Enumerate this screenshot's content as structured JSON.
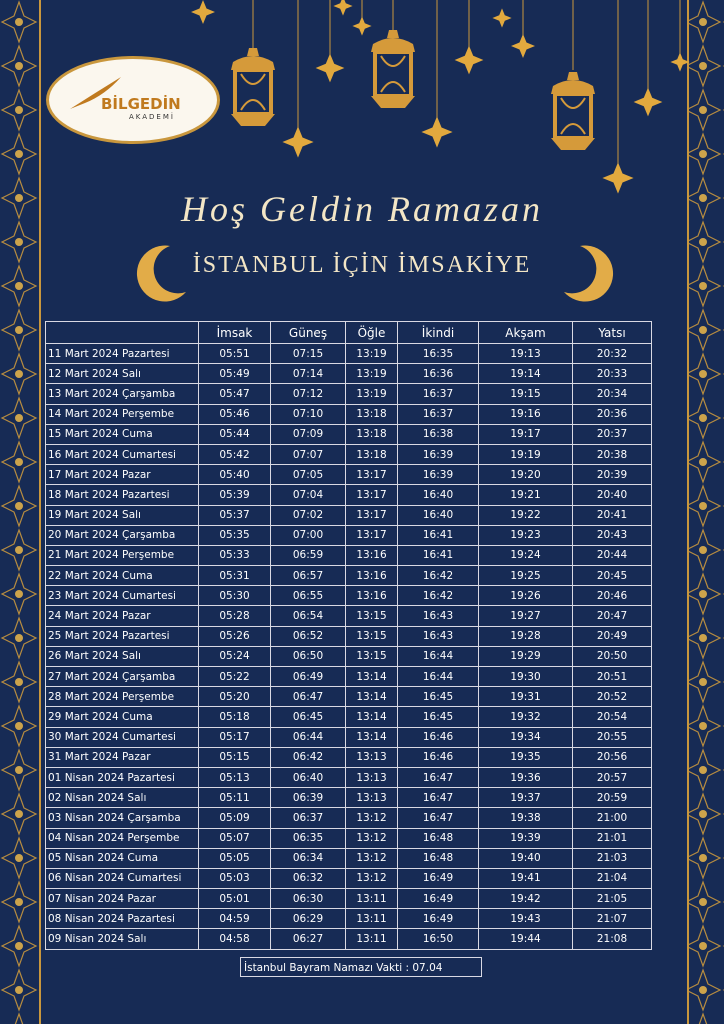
{
  "logo": {
    "name": "BİLGEDİN",
    "sub": "AKADEMİ"
  },
  "header": {
    "title": "Hoş Geldin Ramazan",
    "subtitle": "İSTANBUL İÇİN İMSAKİYE"
  },
  "table": {
    "columns": [
      "İmsak",
      "Güneş",
      "Öğle",
      "İkindi",
      "Akşam",
      "Yatsı"
    ],
    "rows": [
      [
        "11 Mart 2024 Pazartesi",
        "05:51",
        "07:15",
        "13:19",
        "16:35",
        "19:13",
        "20:32"
      ],
      [
        "12 Mart 2024 Salı",
        "05:49",
        "07:14",
        "13:19",
        "16:36",
        "19:14",
        "20:33"
      ],
      [
        "13 Mart 2024 Çarşamba",
        "05:47",
        "07:12",
        "13:19",
        "16:37",
        "19:15",
        "20:34"
      ],
      [
        "14 Mart 2024 Perşembe",
        "05:46",
        "07:10",
        "13:18",
        "16:37",
        "19:16",
        "20:36"
      ],
      [
        "15 Mart 2024 Cuma",
        "05:44",
        "07:09",
        "13:18",
        "16:38",
        "19:17",
        "20:37"
      ],
      [
        "16 Mart 2024 Cumartesi",
        "05:42",
        "07:07",
        "13:18",
        "16:39",
        "19:19",
        "20:38"
      ],
      [
        "17 Mart 2024 Pazar",
        "05:40",
        "07:05",
        "13:17",
        "16:39",
        "19:20",
        "20:39"
      ],
      [
        "18 Mart 2024 Pazartesi",
        "05:39",
        "07:04",
        "13:17",
        "16:40",
        "19:21",
        "20:40"
      ],
      [
        "19 Mart 2024 Salı",
        "05:37",
        "07:02",
        "13:17",
        "16:40",
        "19:22",
        "20:41"
      ],
      [
        "20 Mart 2024 Çarşamba",
        "05:35",
        "07:00",
        "13:17",
        "16:41",
        "19:23",
        "20:43"
      ],
      [
        "21 Mart 2024 Perşembe",
        "05:33",
        "06:59",
        "13:16",
        "16:41",
        "19:24",
        "20:44"
      ],
      [
        "22 Mart 2024 Cuma",
        "05:31",
        "06:57",
        "13:16",
        "16:42",
        "19:25",
        "20:45"
      ],
      [
        "23 Mart 2024 Cumartesi",
        "05:30",
        "06:55",
        "13:16",
        "16:42",
        "19:26",
        "20:46"
      ],
      [
        "24 Mart 2024 Pazar",
        "05:28",
        "06:54",
        "13:15",
        "16:43",
        "19:27",
        "20:47"
      ],
      [
        "25 Mart 2024 Pazartesi",
        "05:26",
        "06:52",
        "13:15",
        "16:43",
        "19:28",
        "20:49"
      ],
      [
        "26 Mart 2024 Salı",
        "05:24",
        "06:50",
        "13:15",
        "16:44",
        "19:29",
        "20:50"
      ],
      [
        "27 Mart 2024 Çarşamba",
        "05:22",
        "06:49",
        "13:14",
        "16:44",
        "19:30",
        "20:51"
      ],
      [
        "28 Mart 2024 Perşembe",
        "05:20",
        "06:47",
        "13:14",
        "16:45",
        "19:31",
        "20:52"
      ],
      [
        "29 Mart 2024 Cuma",
        "05:18",
        "06:45",
        "13:14",
        "16:45",
        "19:32",
        "20:54"
      ],
      [
        "30 Mart 2024 Cumartesi",
        "05:17",
        "06:44",
        "13:14",
        "16:46",
        "19:34",
        "20:55"
      ],
      [
        "31 Mart 2024 Pazar",
        "05:15",
        "06:42",
        "13:13",
        "16:46",
        "19:35",
        "20:56"
      ],
      [
        "01 Nisan 2024 Pazartesi",
        "05:13",
        "06:40",
        "13:13",
        "16:47",
        "19:36",
        "20:57"
      ],
      [
        "02 Nisan 2024 Salı",
        "05:11",
        "06:39",
        "13:13",
        "16:47",
        "19:37",
        "20:59"
      ],
      [
        "03 Nisan 2024 Çarşamba",
        "05:09",
        "06:37",
        "13:12",
        "16:47",
        "19:38",
        "21:00"
      ],
      [
        "04 Nisan 2024 Perşembe",
        "05:07",
        "06:35",
        "13:12",
        "16:48",
        "19:39",
        "21:01"
      ],
      [
        "05 Nisan 2024 Cuma",
        "05:05",
        "06:34",
        "13:12",
        "16:48",
        "19:40",
        "21:03"
      ],
      [
        "06 Nisan 2024 Cumartesi",
        "05:03",
        "06:32",
        "13:12",
        "16:49",
        "19:41",
        "21:04"
      ],
      [
        "07 Nisan 2024 Pazar",
        "05:01",
        "06:30",
        "13:11",
        "16:49",
        "19:42",
        "21:05"
      ],
      [
        "08 Nisan 2024 Pazartesi",
        "04:59",
        "06:29",
        "13:11",
        "16:49",
        "19:43",
        "21:07"
      ],
      [
        "09 Nisan 2024 Salı",
        "04:58",
        "06:27",
        "13:11",
        "16:50",
        "19:44",
        "21:08"
      ]
    ]
  },
  "footer": {
    "note": "İstanbul  Bayram Namazı Vakti : 07.04"
  }
}
